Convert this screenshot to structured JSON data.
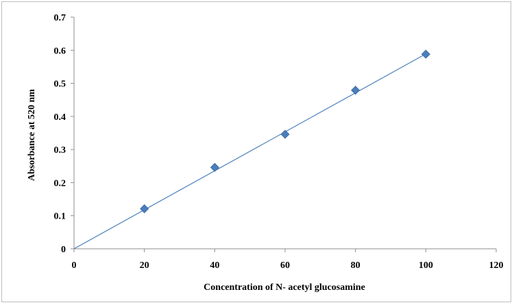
{
  "chart_data": {
    "type": "scatter",
    "title": "",
    "xlabel": "Concentration of N- acetyl glucosamine",
    "ylabel": "Absorbance at 520 nm",
    "xlim": [
      0,
      120
    ],
    "ylim": [
      0,
      0.7
    ],
    "xticks": [
      0,
      20,
      40,
      60,
      80,
      100,
      120
    ],
    "yticks": [
      0,
      0.1,
      0.2,
      0.3,
      0.4,
      0.5,
      0.6,
      0.7
    ],
    "xtick_labels": [
      "0",
      "20",
      "40",
      "60",
      "80",
      "100",
      "120"
    ],
    "ytick_labels": [
      "0",
      "0.1",
      "0.2",
      "0.3",
      "0.4",
      "0.5",
      "0.6",
      "0.7"
    ],
    "grid": false,
    "legend": "none",
    "series": [
      {
        "marker": "diamond",
        "color": "#4a7ebb",
        "x": [
          20,
          40,
          60,
          80,
          100
        ],
        "y": [
          0.121,
          0.246,
          0.346,
          0.479,
          0.588
        ]
      }
    ],
    "trendline": {
      "type": "linear",
      "color": "#4a7ebb",
      "x": [
        0,
        100
      ],
      "y": [
        0,
        0.589
      ]
    }
  }
}
